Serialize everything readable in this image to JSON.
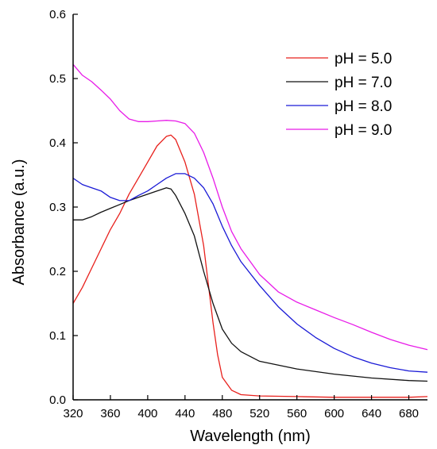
{
  "chart_data": {
    "type": "line",
    "title": "",
    "xlabel": "Wavelength (nm)",
    "ylabel": "Absorbance (a.u.)",
    "xlim": [
      320,
      700
    ],
    "ylim": [
      0,
      0.6
    ],
    "x_ticks": [
      "320",
      "360",
      "400",
      "440",
      "480",
      "520",
      "560",
      "600",
      "640",
      "680"
    ],
    "x_tick_values": [
      320,
      360,
      400,
      440,
      480,
      520,
      560,
      600,
      640,
      680
    ],
    "y_ticks": [
      "0.0",
      "0.1",
      "0.2",
      "0.3",
      "0.4",
      "0.5",
      "0.6"
    ],
    "y_tick_values": [
      0,
      0.1,
      0.2,
      0.3,
      0.4,
      0.5,
      0.6
    ],
    "grid": false,
    "legend_position": "top-right",
    "series": [
      {
        "name": "pH = 5.0",
        "color": "#e8201c",
        "x": [
          320,
          330,
          340,
          350,
          360,
          370,
          380,
          390,
          400,
          410,
          420,
          425,
          430,
          440,
          450,
          460,
          465,
          470,
          475,
          480,
          490,
          500,
          520,
          560,
          600,
          640,
          680,
          700
        ],
        "y": [
          0.15,
          0.175,
          0.205,
          0.235,
          0.265,
          0.29,
          0.32,
          0.345,
          0.37,
          0.395,
          0.41,
          0.412,
          0.405,
          0.37,
          0.32,
          0.24,
          0.18,
          0.12,
          0.07,
          0.035,
          0.015,
          0.008,
          0.006,
          0.005,
          0.004,
          0.004,
          0.004,
          0.005
        ]
      },
      {
        "name": "pH = 7.0",
        "color": "#111111",
        "x": [
          320,
          330,
          340,
          350,
          360,
          370,
          380,
          390,
          400,
          410,
          420,
          425,
          430,
          440,
          450,
          460,
          470,
          480,
          490,
          500,
          520,
          560,
          600,
          640,
          680,
          700
        ],
        "y": [
          0.28,
          0.28,
          0.285,
          0.292,
          0.298,
          0.304,
          0.31,
          0.315,
          0.32,
          0.325,
          0.33,
          0.328,
          0.318,
          0.29,
          0.255,
          0.2,
          0.15,
          0.11,
          0.088,
          0.075,
          0.06,
          0.048,
          0.04,
          0.034,
          0.03,
          0.029
        ]
      },
      {
        "name": "pH = 8.0",
        "color": "#1a1ad6",
        "x": [
          320,
          330,
          340,
          350,
          360,
          370,
          380,
          390,
          400,
          410,
          420,
          430,
          440,
          450,
          460,
          470,
          480,
          490,
          500,
          520,
          540,
          560,
          580,
          600,
          620,
          640,
          660,
          680,
          700
        ],
        "y": [
          0.345,
          0.335,
          0.33,
          0.325,
          0.315,
          0.31,
          0.31,
          0.318,
          0.325,
          0.335,
          0.345,
          0.352,
          0.352,
          0.345,
          0.33,
          0.305,
          0.27,
          0.24,
          0.215,
          0.178,
          0.145,
          0.118,
          0.097,
          0.08,
          0.067,
          0.057,
          0.05,
          0.045,
          0.043
        ]
      },
      {
        "name": "pH = 9.0",
        "color": "#e81be8",
        "x": [
          320,
          330,
          340,
          350,
          360,
          370,
          380,
          390,
          400,
          410,
          420,
          430,
          440,
          450,
          460,
          470,
          480,
          490,
          500,
          520,
          540,
          560,
          580,
          600,
          620,
          640,
          660,
          680,
          700
        ],
        "y": [
          0.522,
          0.505,
          0.495,
          0.482,
          0.468,
          0.45,
          0.437,
          0.433,
          0.433,
          0.434,
          0.435,
          0.434,
          0.43,
          0.415,
          0.385,
          0.345,
          0.3,
          0.262,
          0.235,
          0.195,
          0.168,
          0.152,
          0.14,
          0.128,
          0.117,
          0.105,
          0.094,
          0.085,
          0.078
        ]
      }
    ]
  }
}
